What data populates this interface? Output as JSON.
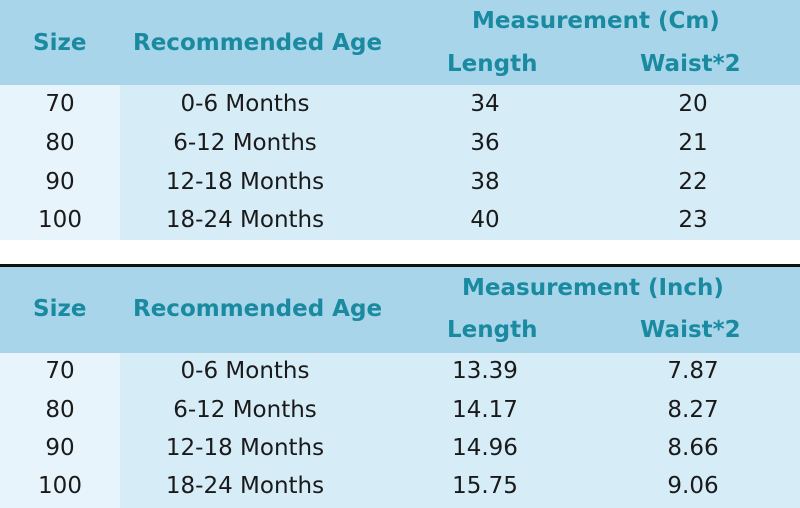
{
  "tables": [
    {
      "header": {
        "size": "Size",
        "age": "Recommended Age",
        "measurement": "Measurement (Cm)",
        "length": "Length",
        "waist": "Waist*2"
      },
      "rows": [
        {
          "size": "70",
          "age": "0-6 Months",
          "length": "34",
          "waist": "20"
        },
        {
          "size": "80",
          "age": "6-12 Months",
          "length": "36",
          "waist": "21"
        },
        {
          "size": "90",
          "age": "12-18 Months",
          "length": "38",
          "waist": "22"
        },
        {
          "size": "100",
          "age": "18-24 Months",
          "length": "40",
          "waist": "23"
        }
      ]
    },
    {
      "header": {
        "size": "Size",
        "age": "Recommended Age",
        "measurement": "Measurement (Inch)",
        "length": "Length",
        "waist": "Waist*2"
      },
      "rows": [
        {
          "size": "70",
          "age": "0-6 Months",
          "length": "13.39",
          "waist": "7.87"
        },
        {
          "size": "80",
          "age": "6-12 Months",
          "length": "14.17",
          "waist": "8.27"
        },
        {
          "size": "90",
          "age": "12-18 Months",
          "length": "14.96",
          "waist": "8.66"
        },
        {
          "size": "100",
          "age": "18-24 Months",
          "length": "15.75",
          "waist": "9.06"
        }
      ]
    }
  ],
  "colors": {
    "header_bg": "#a9d5ea",
    "body_bg": "#d6ecf7",
    "size_col_bg": "#e7f4fb",
    "header_text": "#1a8aa0",
    "body_text": "#1a1a1a",
    "divider": "#111111"
  }
}
